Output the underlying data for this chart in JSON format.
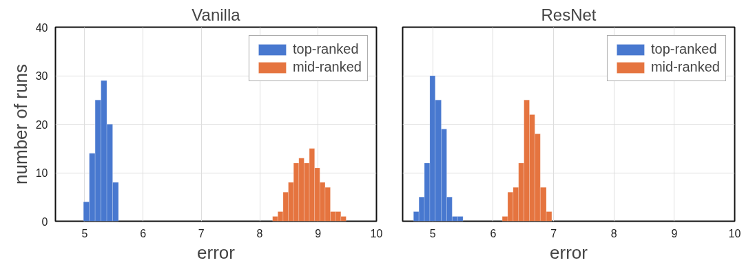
{
  "chart_data": [
    {
      "type": "histogram",
      "title": "Vanilla",
      "xlabel": "error",
      "ylabel": "number of runs",
      "xlim": [
        4.5,
        10
      ],
      "ylim": [
        0,
        40
      ],
      "xticks": [
        5,
        6,
        7,
        8,
        9,
        10
      ],
      "yticks": [
        0,
        10,
        20,
        30,
        40
      ],
      "grid": true,
      "legend": "top right",
      "bins": [
        4.98,
        5.08,
        5.18,
        5.28,
        5.38,
        5.48,
        5.58,
        8.22,
        8.31,
        8.4,
        8.49,
        8.58,
        8.67,
        8.76,
        8.85,
        8.94,
        9.03,
        9.12,
        9.21,
        9.3,
        9.39,
        9.48
      ],
      "series": [
        {
          "name": "top-ranked",
          "color": "#4878cf",
          "values": [
            4,
            14,
            25,
            29,
            20,
            8,
            null,
            null,
            null,
            null,
            null,
            null,
            null,
            null,
            null,
            null,
            null,
            null,
            null,
            null,
            null
          ]
        },
        {
          "name": "mid-ranked",
          "color": "#e5743f",
          "values": [
            null,
            null,
            null,
            null,
            null,
            null,
            null,
            1,
            2,
            6,
            8,
            12,
            13,
            12,
            15,
            11,
            8,
            7,
            2,
            2,
            1
          ]
        }
      ]
    },
    {
      "type": "histogram",
      "title": "ResNet",
      "xlabel": "error",
      "xlim": [
        4.5,
        10
      ],
      "ylim": [
        0,
        40
      ],
      "xticks": [
        5,
        6,
        7,
        8,
        9,
        10
      ],
      "yticks": [
        0,
        10,
        20,
        30,
        40
      ],
      "grid": true,
      "legend": "top right",
      "tick_labels": "x",
      "bins": [
        4.68,
        4.77,
        4.86,
        4.95,
        5.04,
        5.14,
        5.23,
        5.32,
        5.41,
        5.5,
        6.15,
        6.24,
        6.33,
        6.42,
        6.51,
        6.6,
        6.69,
        6.78,
        6.88,
        6.97
      ],
      "series": [
        {
          "name": "top-ranked",
          "color": "#4878cf",
          "values": [
            2,
            5,
            12,
            30,
            25,
            19,
            5,
            1,
            1,
            null,
            null,
            null,
            null,
            null,
            null,
            null,
            null,
            null,
            null
          ]
        },
        {
          "name": "mid-ranked",
          "color": "#e5743f",
          "values": [
            null,
            null,
            null,
            null,
            null,
            null,
            null,
            null,
            null,
            null,
            1,
            6,
            7,
            12,
            25,
            22,
            18,
            7,
            2
          ]
        }
      ]
    }
  ]
}
